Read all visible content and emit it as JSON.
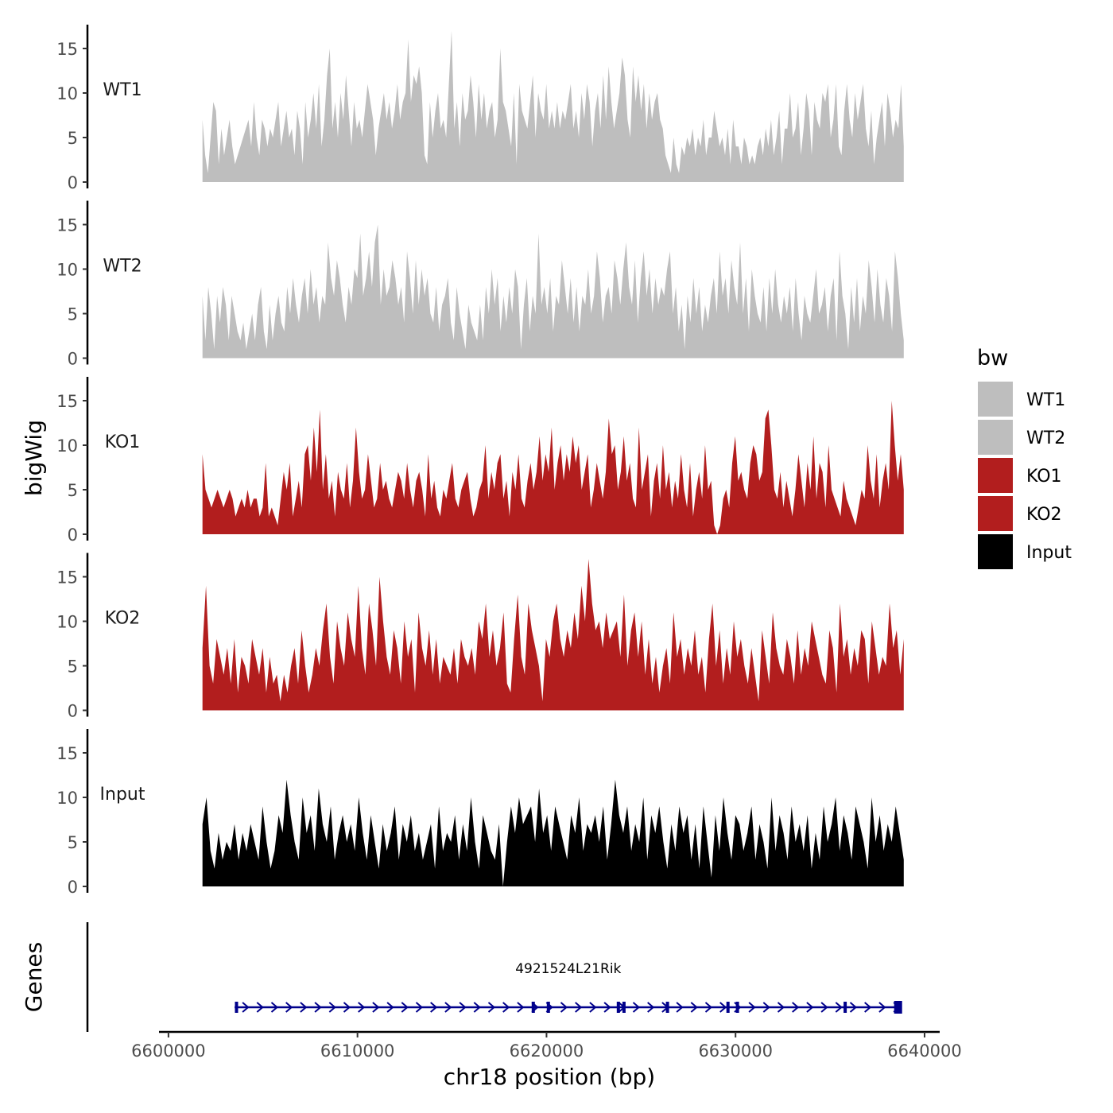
{
  "chart_data": {
    "type": "area",
    "genome_axis": {
      "label": "chr18 position (bp)",
      "range": [
        6599500,
        6640800
      ],
      "ticks": [
        6600000,
        6610000,
        6620000,
        6630000,
        6640000
      ],
      "tick_labels": [
        "6600000",
        "6610000",
        "6620000",
        "6630000",
        "6640000"
      ]
    },
    "signal_axis": {
      "label": "bigWig",
      "range": [
        0,
        17.5
      ],
      "ticks": [
        0,
        5,
        10,
        15
      ],
      "tick_labels": [
        "0",
        "5",
        "10",
        "15"
      ]
    },
    "x_range": [
      6601800,
      6638900
    ],
    "legend": {
      "title": "bw",
      "position": "right",
      "entries": [
        {
          "label": "WT1",
          "color": "#bebebe"
        },
        {
          "label": "WT2",
          "color": "#bebebe"
        },
        {
          "label": "KO1",
          "color": "#b21e1e"
        },
        {
          "label": "KO2",
          "color": "#b21e1e"
        },
        {
          "label": "Input",
          "color": "#000000"
        }
      ]
    },
    "series": [
      {
        "name": "WT1",
        "color": "#bebebe",
        "values": [
          7,
          3,
          1,
          5,
          9,
          8,
          2,
          6,
          3,
          5,
          7,
          4,
          2,
          3,
          4,
          5,
          6,
          7,
          4,
          9,
          5,
          3,
          7,
          6,
          4,
          6,
          5,
          7,
          9,
          4,
          6,
          8,
          5,
          6,
          3,
          8,
          6,
          2,
          9,
          5,
          7,
          10,
          6,
          11,
          4,
          7,
          12,
          15,
          6,
          9,
          5,
          10,
          7,
          12,
          8,
          4,
          9,
          6,
          7,
          5,
          8,
          11,
          9,
          7,
          3,
          6,
          8,
          10,
          7,
          9,
          6,
          8,
          11,
          7,
          9,
          10,
          16,
          9,
          12,
          11,
          13,
          10,
          3,
          2,
          9,
          5,
          8,
          10,
          6,
          7,
          5,
          11,
          17,
          6,
          9,
          4,
          10,
          7,
          8,
          12,
          9,
          5,
          11,
          7,
          10,
          6,
          8,
          9,
          5,
          7,
          15,
          9,
          8,
          6,
          4,
          10,
          2,
          11,
          8,
          7,
          6,
          9,
          12,
          5,
          10,
          8,
          7,
          11,
          6,
          8,
          6,
          9,
          6,
          8,
          7,
          9,
          11,
          6,
          8,
          5,
          10,
          7,
          11,
          9,
          4,
          8,
          10,
          6,
          12,
          7,
          13,
          9,
          6,
          8,
          10,
          14,
          12,
          7,
          5,
          13,
          9,
          12,
          8,
          11,
          6,
          10,
          7,
          9,
          10,
          7,
          6,
          3,
          2,
          1,
          5,
          2,
          1,
          4,
          3,
          5,
          4,
          6,
          3,
          5,
          4,
          7,
          3,
          5,
          5,
          8,
          6,
          4,
          5,
          3,
          6,
          2,
          7,
          4,
          4,
          2,
          5,
          4,
          2,
          3,
          2,
          4,
          5,
          3,
          6,
          4,
          7,
          3,
          5,
          8,
          2,
          6,
          6,
          10,
          5,
          6,
          9,
          3,
          6,
          10,
          8,
          3,
          9,
          7,
          6,
          10,
          9,
          11,
          5,
          7,
          11,
          4,
          3,
          8,
          11,
          7,
          5,
          10,
          7,
          9,
          11,
          6,
          4,
          8,
          2,
          5,
          7,
          9,
          4,
          10,
          8,
          5,
          7,
          6,
          11,
          4
        ]
      },
      {
        "name": "WT2",
        "color": "#bebebe",
        "values": [
          7,
          2,
          8,
          5,
          1,
          7,
          4,
          8,
          6,
          2,
          7,
          5,
          3,
          2,
          4,
          1,
          3,
          5,
          2,
          6,
          8,
          3,
          1,
          6,
          2,
          5,
          7,
          4,
          3,
          8,
          5,
          9,
          6,
          4,
          7,
          9,
          5,
          10,
          6,
          8,
          4,
          7,
          6,
          13,
          9,
          7,
          11,
          9,
          6,
          4,
          8,
          6,
          10,
          9,
          14,
          7,
          9,
          12,
          8,
          13,
          15,
          6,
          10,
          7,
          8,
          11,
          9,
          6,
          8,
          4,
          12,
          9,
          5,
          11,
          6,
          10,
          7,
          9,
          5,
          4,
          8,
          3,
          6,
          7,
          9,
          4,
          2,
          8,
          5,
          3,
          1,
          6,
          4,
          3,
          2,
          6,
          2,
          8,
          5,
          10,
          6,
          9,
          3,
          7,
          4,
          8,
          5,
          10,
          8,
          1,
          6,
          9,
          3,
          7,
          5,
          14,
          6,
          8,
          5,
          9,
          3,
          7,
          6,
          11,
          8,
          5,
          9,
          4,
          8,
          3,
          7,
          6,
          10,
          5,
          7,
          12,
          9,
          4,
          7,
          8,
          5,
          11,
          9,
          6,
          10,
          13,
          8,
          6,
          11,
          4,
          9,
          12,
          7,
          10,
          5,
          9,
          6,
          8,
          7,
          10,
          12,
          5,
          8,
          3,
          6,
          1,
          7,
          4,
          9,
          5,
          8,
          3,
          6,
          4,
          7,
          9,
          5,
          12,
          7,
          9,
          5,
          11,
          8,
          6,
          13,
          5,
          9,
          3,
          10,
          7,
          5,
          4,
          8,
          3,
          9,
          5,
          10,
          6,
          4,
          7,
          5,
          8,
          3,
          9,
          5,
          2,
          7,
          5,
          4,
          7,
          10,
          5,
          6,
          8,
          3,
          7,
          9,
          2,
          12,
          7,
          5,
          1,
          8,
          4,
          9,
          3,
          7,
          5,
          11,
          8,
          4,
          10,
          6,
          4,
          9,
          7,
          3,
          12,
          9,
          5,
          2
        ]
      },
      {
        "name": "KO1",
        "color": "#b21e1e",
        "values": [
          9,
          5,
          4,
          3,
          4,
          5,
          4,
          3,
          4,
          5,
          4,
          2,
          3,
          4,
          3,
          5,
          3,
          4,
          4,
          2,
          3,
          8,
          2,
          3,
          2,
          1,
          4,
          7,
          5,
          8,
          2,
          4,
          6,
          3,
          9,
          10,
          6,
          12,
          7,
          14,
          5,
          9,
          4,
          6,
          2,
          7,
          5,
          4,
          8,
          3,
          6,
          12,
          7,
          4,
          5,
          9,
          6,
          3,
          4,
          8,
          5,
          6,
          4,
          3,
          5,
          7,
          6,
          4,
          8,
          5,
          3,
          6,
          7,
          5,
          2,
          9,
          4,
          6,
          3,
          2,
          5,
          4,
          6,
          8,
          4,
          3,
          5,
          6,
          7,
          4,
          2,
          3,
          5,
          6,
          10,
          4,
          7,
          5,
          8,
          9,
          4,
          6,
          2,
          7,
          5,
          9,
          4,
          3,
          6,
          8,
          5,
          7,
          11,
          6,
          9,
          7,
          12,
          5,
          8,
          10,
          6,
          9,
          7,
          11,
          8,
          10,
          5,
          7,
          9,
          3,
          5,
          8,
          6,
          4,
          7,
          13,
          9,
          10,
          5,
          7,
          11,
          6,
          8,
          4,
          3,
          12,
          5,
          7,
          9,
          2,
          6,
          8,
          4,
          10,
          5,
          7,
          3,
          6,
          4,
          9,
          5,
          3,
          8,
          2,
          5,
          7,
          4,
          10,
          5,
          6,
          1,
          0,
          1,
          4,
          5,
          3,
          8,
          11,
          6,
          7,
          5,
          4,
          8,
          10,
          9,
          6,
          7,
          13,
          14,
          10,
          5,
          4,
          7,
          3,
          6,
          4,
          2,
          5,
          9,
          6,
          3,
          8,
          5,
          11,
          4,
          8,
          7,
          3,
          10,
          5,
          4,
          3,
          2,
          6,
          4,
          3,
          2,
          1,
          3,
          5,
          4,
          10,
          6,
          4,
          9,
          3,
          6,
          8,
          5,
          15,
          10,
          6,
          9,
          5
        ]
      },
      {
        "name": "KO2",
        "color": "#b21e1e",
        "values": [
          7,
          14,
          5,
          3,
          8,
          6,
          4,
          7,
          3,
          8,
          2,
          6,
          5,
          3,
          8,
          6,
          4,
          7,
          2,
          6,
          3,
          4,
          1,
          4,
          2,
          5,
          7,
          3,
          9,
          5,
          2,
          4,
          7,
          5,
          9,
          12,
          6,
          3,
          10,
          7,
          5,
          11,
          8,
          6,
          14,
          7,
          4,
          12,
          9,
          5,
          15,
          10,
          6,
          4,
          9,
          7,
          3,
          10,
          6,
          8,
          2,
          11,
          7,
          5,
          9,
          4,
          8,
          3,
          6,
          5,
          4,
          7,
          3,
          8,
          6,
          5,
          7,
          4,
          10,
          8,
          12,
          6,
          9,
          5,
          7,
          11,
          3,
          2,
          8,
          13,
          6,
          4,
          12,
          9,
          7,
          5,
          1,
          8,
          6,
          10,
          12,
          8,
          6,
          9,
          7,
          11,
          8,
          14,
          10,
          17,
          12,
          9,
          10,
          7,
          11,
          8,
          9,
          10,
          6,
          13,
          5,
          9,
          11,
          6,
          10,
          4,
          8,
          3,
          6,
          2,
          5,
          7,
          3,
          11,
          6,
          8,
          4,
          7,
          5,
          9,
          4,
          6,
          2,
          8,
          12,
          5,
          9,
          3,
          7,
          4,
          10,
          6,
          8,
          5,
          3,
          7,
          4,
          1,
          9,
          6,
          3,
          11,
          7,
          5,
          4,
          8,
          6,
          3,
          9,
          4,
          7,
          5,
          10,
          8,
          6,
          4,
          3,
          9,
          7,
          2,
          12,
          6,
          8,
          4,
          7,
          5,
          9,
          8,
          3,
          10,
          7,
          4,
          6,
          5,
          12,
          7,
          9,
          4,
          8
        ]
      },
      {
        "name": "Input",
        "color": "#000000",
        "values": [
          7,
          10,
          4,
          2,
          6,
          3,
          5,
          4,
          7,
          3,
          6,
          4,
          7,
          5,
          3,
          9,
          5,
          2,
          4,
          8,
          6,
          12,
          8,
          5,
          3,
          10,
          6,
          8,
          4,
          11,
          7,
          5,
          9,
          3,
          6,
          8,
          5,
          7,
          4,
          10,
          6,
          3,
          8,
          5,
          2,
          7,
          4,
          6,
          9,
          3,
          7,
          5,
          8,
          4,
          6,
          3,
          5,
          7,
          2,
          9,
          4,
          6,
          5,
          8,
          3,
          7,
          4,
          10,
          5,
          2,
          8,
          6,
          4,
          3,
          7,
          0,
          5,
          9,
          6,
          10,
          7,
          8,
          9,
          5,
          11,
          6,
          8,
          4,
          9,
          7,
          5,
          3,
          8,
          6,
          10,
          4,
          7,
          6,
          8,
          5,
          9,
          3,
          7,
          12,
          8,
          6,
          9,
          4,
          7,
          5,
          10,
          3,
          8,
          6,
          9,
          5,
          2,
          7,
          4,
          9,
          6,
          8,
          3,
          7,
          2,
          9,
          5,
          1,
          8,
          4,
          10,
          6,
          3,
          8,
          7,
          4,
          6,
          9,
          3,
          7,
          5,
          2,
          10,
          4,
          8,
          6,
          3,
          9,
          5,
          7,
          4,
          8,
          2,
          6,
          3,
          9,
          5,
          7,
          10,
          4,
          8,
          6,
          3,
          9,
          7,
          5,
          2,
          10,
          5,
          8,
          4,
          7,
          5,
          9,
          6,
          3
        ]
      }
    ],
    "gene_track": {
      "label": "Genes",
      "gene_name": "4921524L21Rik",
      "color": "#00008b",
      "start": 6603500,
      "end": 6638800,
      "strand": "+",
      "exons": [
        6603600,
        6619300,
        6620100,
        6623800,
        6624100,
        6626400,
        6629600,
        6630100,
        6635800,
        6638600
      ]
    }
  }
}
